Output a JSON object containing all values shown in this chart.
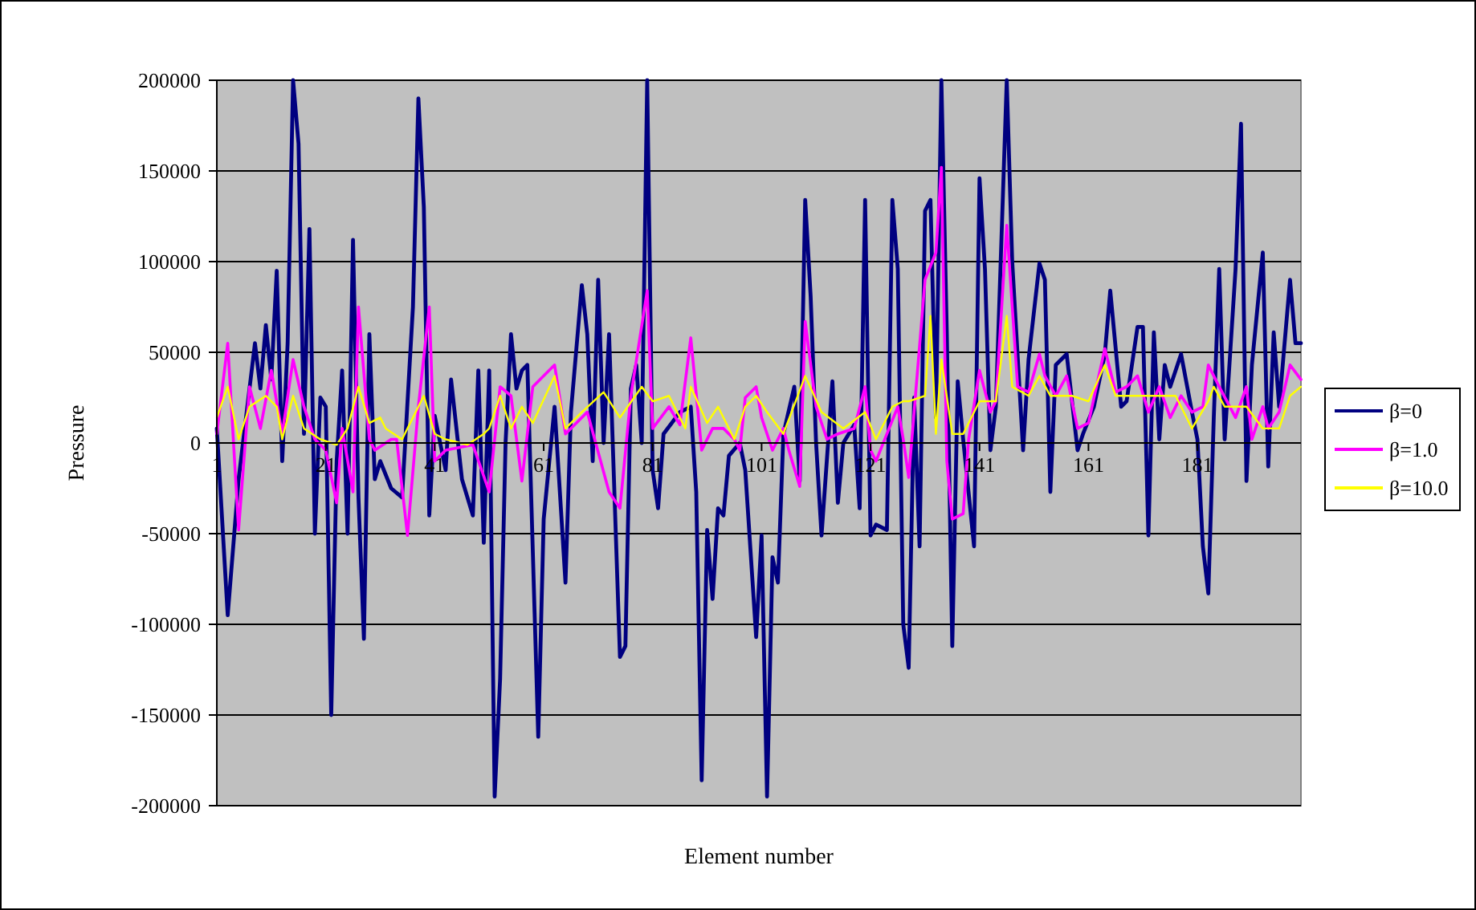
{
  "chart_data": {
    "type": "line",
    "xlabel": "Element number",
    "ylabel": "Pressure",
    "xlim": [
      1,
      200
    ],
    "xticks": [
      1,
      21,
      41,
      61,
      81,
      101,
      121,
      141,
      161,
      181
    ],
    "ylim": [
      -200000,
      200000
    ],
    "yticks": [
      -200000,
      -150000,
      -100000,
      -50000,
      0,
      50000,
      100000,
      150000,
      200000
    ],
    "grid": "y",
    "legend": "right",
    "marker": "none",
    "line_style": "solid",
    "series": [
      {
        "name": "β=0",
        "color": "#000080",
        "x": [
          1,
          3,
          5,
          8,
          9,
          10,
          11,
          12,
          13,
          14,
          15,
          16,
          17,
          18,
          19,
          20,
          21,
          22,
          23,
          24,
          25,
          26,
          27,
          28,
          29,
          30,
          31,
          33,
          35,
          37,
          38,
          39,
          40,
          41,
          43,
          44,
          46,
          48,
          49,
          50,
          51,
          52,
          53,
          54,
          55,
          56,
          57,
          58,
          60,
          61,
          63,
          65,
          66,
          68,
          69,
          70,
          71,
          72,
          73,
          75,
          76,
          77,
          78,
          79,
          80,
          81,
          82,
          83,
          86,
          88,
          89,
          90,
          91,
          92,
          93,
          94,
          95,
          97,
          98,
          100,
          101,
          102,
          103,
          104,
          105,
          107,
          108,
          109,
          110,
          111,
          112,
          114,
          115,
          116,
          118,
          119,
          120,
          121,
          122,
          124,
          125,
          126,
          127,
          128,
          129,
          130,
          131,
          132,
          133,
          134,
          135,
          136,
          137,
          138,
          140,
          141,
          142,
          143,
          144,
          146,
          147,
          149,
          150,
          152,
          153,
          154,
          155,
          157,
          159,
          160,
          162,
          164,
          165,
          167,
          168,
          170,
          171,
          172,
          173,
          174,
          175,
          176,
          178,
          180,
          181,
          182,
          183,
          184,
          185,
          186,
          188,
          189,
          190,
          191,
          193,
          194,
          195,
          196,
          198,
          199,
          200
        ],
        "values": [
          8000,
          -95000,
          -20000,
          55000,
          30000,
          65000,
          35000,
          95000,
          -10000,
          55000,
          200000,
          165000,
          5000,
          118000,
          -50000,
          25000,
          20000,
          -150000,
          -10000,
          40000,
          -50000,
          112000,
          -30000,
          -108000,
          60000,
          -20000,
          -10000,
          -25000,
          -30000,
          75000,
          190000,
          130000,
          -40000,
          15000,
          -15000,
          35000,
          -20000,
          -40000,
          40000,
          -55000,
          40000,
          -195000,
          -130000,
          0,
          60000,
          30000,
          40000,
          43000,
          -162000,
          -42000,
          20000,
          -77000,
          17000,
          87000,
          60000,
          -10000,
          90000,
          0,
          60000,
          -118000,
          -112000,
          30000,
          43000,
          0,
          200000,
          -15000,
          -36000,
          5000,
          17000,
          20000,
          -27000,
          -186000,
          -48000,
          -86000,
          -36000,
          -40000,
          -7000,
          0,
          -15000,
          -107000,
          -51000,
          -195000,
          -63000,
          -77000,
          5000,
          31000,
          -21000,
          134000,
          81000,
          0,
          -51000,
          34000,
          -33000,
          0,
          10000,
          -36000,
          134000,
          -51000,
          -45000,
          -48000,
          134000,
          96000,
          -100000,
          -124000,
          25000,
          -57000,
          128000,
          134000,
          14000,
          200000,
          60000,
          -112000,
          34000,
          2000,
          -57000,
          146000,
          96000,
          -4000,
          20000,
          200000,
          100000,
          -4000,
          46000,
          99000,
          90000,
          -27000,
          43000,
          49000,
          -4000,
          5000,
          20000,
          49000,
          84000,
          20000,
          23000,
          64000,
          64000,
          -51000,
          61000,
          2000,
          43000,
          31000,
          49000,
          17000,
          2000,
          -57000,
          -83000,
          14000,
          96000,
          2000,
          96000,
          176000,
          -21000,
          43000,
          105000,
          -13000,
          61000,
          20000,
          90000,
          55000,
          55000
        ]
      },
      {
        "name": "β=1.0",
        "color": "#ff00ff",
        "x": [
          1,
          3,
          5,
          7,
          9,
          11,
          13,
          15,
          17,
          19,
          21,
          23,
          24,
          26,
          27,
          29,
          30,
          33,
          34,
          36,
          38,
          40,
          41,
          43,
          48,
          51,
          53,
          55,
          57,
          59,
          63,
          65,
          69,
          73,
          75,
          77,
          80,
          81,
          84,
          86,
          88,
          90,
          92,
          94,
          96,
          97,
          98,
          100,
          101,
          103,
          105,
          106,
          108,
          109,
          111,
          113,
          115,
          118,
          120,
          121,
          122,
          126,
          127,
          128,
          131,
          133,
          134,
          135,
          136,
          138,
          139,
          141,
          143,
          144,
          146,
          148,
          150,
          152,
          153,
          155,
          157,
          159,
          161,
          164,
          166,
          168,
          170,
          172,
          174,
          176,
          178,
          180,
          182,
          183,
          185,
          188,
          190,
          191,
          193,
          194,
          196,
          198,
          200
        ],
        "values": [
          5000,
          55000,
          -48000,
          31000,
          8000,
          40000,
          5000,
          46000,
          20000,
          2000,
          -4000,
          -33000,
          8000,
          -27000,
          75000,
          2000,
          -4000,
          2000,
          2000,
          -51000,
          20000,
          75000,
          -10000,
          -4000,
          -1000,
          -27000,
          31000,
          26000,
          -21000,
          31000,
          43000,
          5000,
          17000,
          -27000,
          -36000,
          26000,
          84000,
          8000,
          20000,
          10000,
          58000,
          -4000,
          8000,
          8000,
          2000,
          -4000,
          25000,
          31000,
          14000,
          -4000,
          8000,
          -4000,
          -24000,
          67000,
          20000,
          2000,
          5000,
          8000,
          31000,
          -4000,
          -10000,
          20000,
          2000,
          -19000,
          90000,
          105000,
          152000,
          -10000,
          -42000,
          -39000,
          2000,
          40000,
          17000,
          23000,
          120000,
          31000,
          28000,
          49000,
          37000,
          26000,
          37000,
          8000,
          11000,
          52000,
          28000,
          31000,
          37000,
          17000,
          31000,
          14000,
          26000,
          17000,
          20000,
          43000,
          31000,
          14000,
          31000,
          2000,
          20000,
          8000,
          17000,
          43000,
          35000
        ]
      },
      {
        "name": "β=10.0",
        "color": "#ffff00",
        "x": [
          1,
          3,
          5,
          7,
          10,
          12,
          13,
          15,
          17,
          20,
          23,
          25,
          27,
          29,
          31,
          32,
          35,
          39,
          41,
          43,
          47,
          50,
          51,
          53,
          55,
          57,
          59,
          63,
          65,
          68,
          72,
          75,
          79,
          81,
          84,
          87,
          88,
          91,
          93,
          96,
          98,
          100,
          102,
          105,
          109,
          112,
          116,
          120,
          122,
          125,
          127,
          128,
          131,
          132,
          133,
          134,
          136,
          138,
          141,
          144,
          146,
          147,
          150,
          152,
          154,
          158,
          161,
          164,
          166,
          170,
          174,
          177,
          180,
          183,
          184,
          186,
          190,
          193,
          196,
          198,
          200
        ],
        "values": [
          14000,
          31000,
          2000,
          20000,
          26000,
          20000,
          2000,
          26000,
          8000,
          2000,
          -1000,
          8000,
          31000,
          11000,
          14000,
          8000,
          2000,
          26000,
          5000,
          2000,
          -1000,
          5000,
          8000,
          26000,
          8000,
          20000,
          11000,
          37000,
          8000,
          17000,
          28000,
          14000,
          31000,
          23000,
          26000,
          8000,
          31000,
          11000,
          20000,
          2000,
          20000,
          26000,
          17000,
          5000,
          37000,
          17000,
          8000,
          17000,
          2000,
          20000,
          23000,
          23000,
          26000,
          70000,
          5000,
          46000,
          5000,
          5000,
          23000,
          23000,
          70000,
          31000,
          26000,
          37000,
          26000,
          26000,
          23000,
          43000,
          26000,
          26000,
          26000,
          26000,
          8000,
          23000,
          31000,
          20000,
          20000,
          8000,
          8000,
          26000,
          31000
        ]
      }
    ]
  }
}
